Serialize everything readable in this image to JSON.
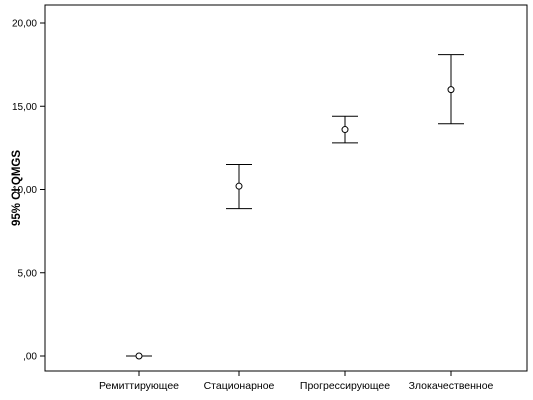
{
  "chart_data": {
    "type": "errorbar",
    "ylabel": "95% CI QMGS",
    "xlabel": "",
    "ylim": [
      0,
      20
    ],
    "yticks": [
      {
        "value": 0,
        "label": ",00"
      },
      {
        "value": 5,
        "label": "5,00"
      },
      {
        "value": 10,
        "label": "10,00"
      },
      {
        "value": 15,
        "label": "15,00"
      },
      {
        "value": 20,
        "label": "20,00"
      }
    ],
    "categories": [
      "Ремиттирующее",
      "Стационарное",
      "Прогрессирующее",
      "Злокачественное"
    ],
    "points": [
      {
        "category": "Ремиттирующее",
        "mean": 0.0,
        "lower": 0.0,
        "upper": 0.0
      },
      {
        "category": "Стационарное",
        "mean": 10.2,
        "lower": 8.85,
        "upper": 11.5
      },
      {
        "category": "Прогрессирующее",
        "mean": 13.6,
        "lower": 12.8,
        "upper": 14.4
      },
      {
        "category": "Злокачественное",
        "mean": 16.0,
        "lower": 13.95,
        "upper": 18.1
      }
    ],
    "grid": false,
    "legend": "none"
  }
}
